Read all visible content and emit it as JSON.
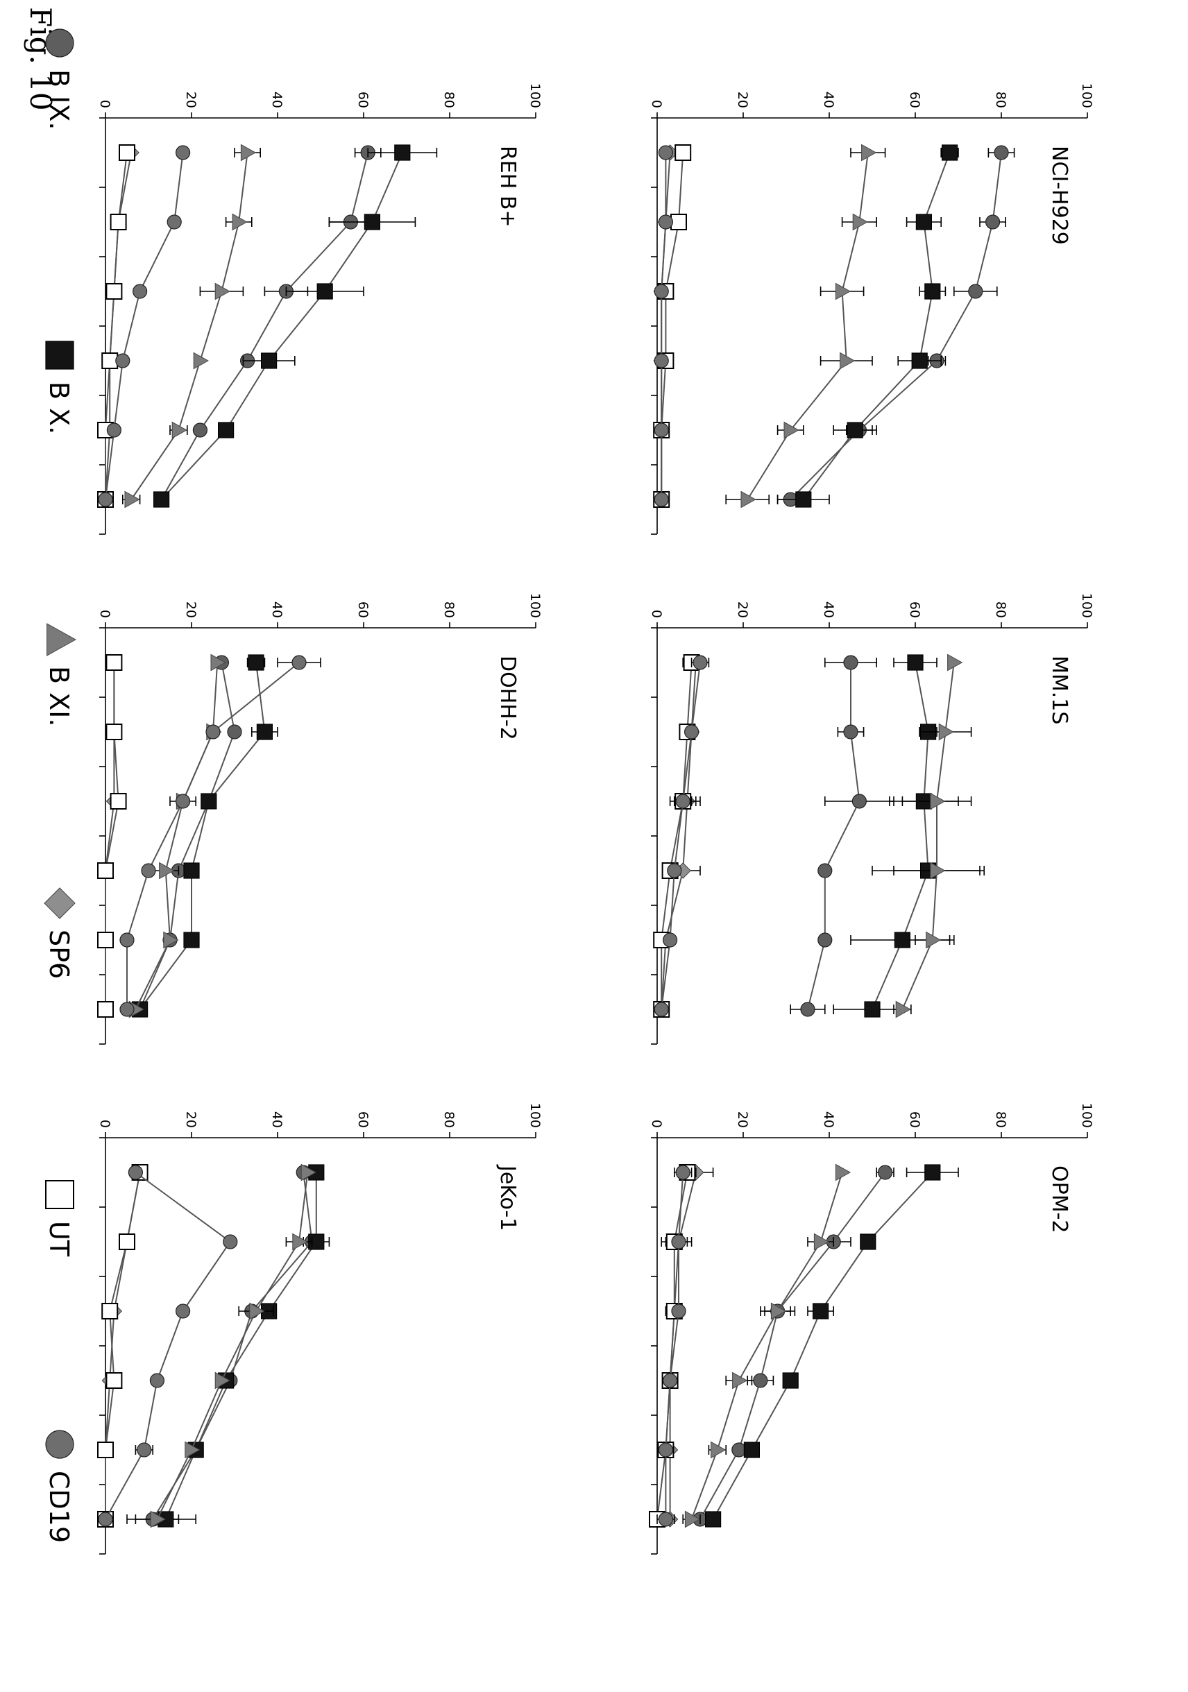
{
  "figure": {
    "title": "Fig. 10"
  },
  "legend": [
    {
      "label": "B IX.",
      "marker": "circle",
      "color": "#5e5e5e"
    },
    {
      "label": "B X.",
      "marker": "square",
      "color": "#141414"
    },
    {
      "label": "B XI.",
      "marker": "triangle",
      "color": "#7a7a7a"
    },
    {
      "label": "SP6",
      "marker": "diamond",
      "color": "#8e8e8e"
    },
    {
      "label": "UT",
      "marker": "open-square",
      "color": "#ffffff"
    },
    {
      "label": "CD19",
      "marker": "circle",
      "color": "#6e6e6e"
    }
  ],
  "chart_data": [
    {
      "type": "line",
      "title": "NCI-H929",
      "ylim": [
        0,
        100
      ],
      "yticks": [
        0,
        20,
        40,
        60,
        80,
        100
      ],
      "x": [
        1,
        2,
        3,
        4,
        5,
        6
      ],
      "series": [
        {
          "name": "B IX.",
          "values": [
            80,
            78,
            74,
            65,
            47,
            31
          ],
          "errors": [
            3,
            3,
            5,
            2,
            3,
            3
          ]
        },
        {
          "name": "B X.",
          "values": [
            68,
            62,
            64,
            61,
            46,
            34
          ],
          "errors": [
            2,
            4,
            3,
            5,
            5,
            6
          ]
        },
        {
          "name": "B XI.",
          "values": [
            49,
            47,
            43,
            44,
            31,
            21
          ],
          "errors": [
            4,
            4,
            5,
            6,
            3,
            5
          ]
        },
        {
          "name": "SP6",
          "values": [
            3,
            2,
            1,
            1,
            1,
            1
          ],
          "errors": [
            0,
            0,
            0,
            0,
            0,
            0
          ]
        },
        {
          "name": "UT",
          "values": [
            6,
            5,
            2,
            2,
            1,
            1
          ],
          "errors": [
            0,
            0,
            0,
            0,
            0,
            0
          ]
        },
        {
          "name": "CD19",
          "values": [
            2,
            2,
            1,
            1,
            1,
            1
          ],
          "errors": [
            0,
            0,
            0,
            0,
            0,
            0
          ]
        }
      ]
    },
    {
      "type": "line",
      "title": "MM.1S",
      "ylim": [
        0,
        100
      ],
      "yticks": [
        0,
        20,
        40,
        60,
        80,
        100
      ],
      "x": [
        1,
        2,
        3,
        4,
        5,
        6
      ],
      "series": [
        {
          "name": "B IX.",
          "values": [
            45,
            45,
            47,
            39,
            39,
            35
          ],
          "errors": [
            6,
            3,
            8,
            0,
            0,
            4
          ]
        },
        {
          "name": "B X.",
          "values": [
            60,
            63,
            62,
            63,
            57,
            50
          ],
          "errors": [
            5,
            2,
            8,
            13,
            12,
            9
          ]
        },
        {
          "name": "B XI.",
          "values": [
            69,
            67,
            65,
            65,
            64,
            57
          ],
          "errors": [
            0,
            6,
            8,
            10,
            4,
            2
          ]
        },
        {
          "name": "SP6",
          "values": [
            9,
            8,
            7,
            6,
            2,
            1
          ],
          "errors": [
            0,
            0,
            3,
            4,
            0,
            0
          ]
        },
        {
          "name": "UT",
          "values": [
            8,
            7,
            6,
            3,
            1,
            1
          ],
          "errors": [
            2,
            0,
            3,
            0,
            0,
            0
          ]
        },
        {
          "name": "CD19",
          "values": [
            10,
            8,
            6,
            4,
            3,
            1
          ],
          "errors": [
            2,
            0,
            2,
            0,
            0,
            0
          ]
        }
      ]
    },
    {
      "type": "line",
      "title": "OPM-2",
      "ylim": [
        0,
        100
      ],
      "yticks": [
        0,
        20,
        40,
        60,
        80,
        100
      ],
      "x": [
        1,
        2,
        3,
        4,
        5,
        6
      ],
      "series": [
        {
          "name": "B IX.",
          "values": [
            53,
            41,
            28,
            24,
            19,
            10
          ],
          "errors": [
            2,
            4,
            4,
            3,
            0,
            0
          ]
        },
        {
          "name": "B X.",
          "values": [
            64,
            49,
            38,
            31,
            22,
            13
          ],
          "errors": [
            6,
            0,
            3,
            0,
            0,
            0
          ]
        },
        {
          "name": "B XI.",
          "values": [
            43,
            38,
            28,
            19,
            14,
            8
          ],
          "errors": [
            0,
            3,
            3,
            3,
            2,
            2
          ]
        },
        {
          "name": "SP6",
          "values": [
            9,
            5,
            4,
            3,
            3,
            3
          ],
          "errors": [
            4,
            3,
            2,
            0,
            0,
            0
          ]
        },
        {
          "name": "UT",
          "values": [
            7,
            4,
            4,
            3,
            2,
            0
          ],
          "errors": [
            2,
            3,
            2,
            0,
            0,
            0
          ]
        },
        {
          "name": "CD19",
          "values": [
            6,
            5,
            5,
            3,
            2,
            2
          ],
          "errors": [
            2,
            0,
            0,
            0,
            0,
            2
          ]
        }
      ]
    },
    {
      "type": "line",
      "title": "REH B+",
      "ylim": [
        0,
        100
      ],
      "yticks": [
        0,
        20,
        40,
        60,
        80,
        100
      ],
      "x": [
        1,
        2,
        3,
        4,
        5,
        6
      ],
      "series": [
        {
          "name": "B IX.",
          "values": [
            61,
            57,
            42,
            33,
            22,
            13
          ],
          "errors": [
            3,
            5,
            5,
            0,
            0,
            0
          ]
        },
        {
          "name": "B X.",
          "values": [
            69,
            62,
            51,
            38,
            28,
            13
          ],
          "errors": [
            8,
            10,
            9,
            6,
            0,
            0
          ]
        },
        {
          "name": "B XI.",
          "values": [
            33,
            31,
            27,
            22,
            17,
            6
          ],
          "errors": [
            3,
            3,
            5,
            0,
            2,
            2
          ]
        },
        {
          "name": "SP6",
          "values": [
            6,
            3,
            2,
            1,
            1,
            0
          ],
          "errors": [
            0,
            0,
            0,
            0,
            0,
            0
          ]
        },
        {
          "name": "UT",
          "values": [
            5,
            3,
            2,
            1,
            0,
            0
          ],
          "errors": [
            0,
            0,
            0,
            0,
            0,
            0
          ]
        },
        {
          "name": "CD19",
          "values": [
            18,
            16,
            8,
            4,
            2,
            0
          ],
          "errors": [
            0,
            0,
            0,
            0,
            0,
            0
          ]
        }
      ]
    },
    {
      "type": "line",
      "title": "DOHH-2",
      "ylim": [
        0,
        100
      ],
      "yticks": [
        0,
        20,
        40,
        60,
        80,
        100
      ],
      "x": [
        1,
        2,
        3,
        4,
        5,
        6
      ],
      "series": [
        {
          "name": "B IX.",
          "values": [
            27,
            30,
            24,
            17,
            15,
            8
          ],
          "errors": [
            0,
            0,
            0,
            0,
            0,
            0
          ]
        },
        {
          "name": "B X.",
          "values": [
            35,
            37,
            24,
            20,
            20,
            8
          ],
          "errors": [
            2,
            3,
            0,
            0,
            0,
            0
          ]
        },
        {
          "name": "B XI.",
          "values": [
            26,
            25,
            18,
            14,
            15,
            7
          ],
          "errors": [
            0,
            0,
            3,
            3,
            0,
            0
          ]
        },
        {
          "name": "SP6",
          "values": [
            2,
            2,
            2,
            0,
            0,
            0
          ],
          "errors": [
            0,
            0,
            0,
            0,
            0,
            0
          ]
        },
        {
          "name": "UT",
          "values": [
            2,
            2,
            3,
            0,
            0,
            0
          ],
          "errors": [
            0,
            0,
            0,
            0,
            0,
            0
          ]
        },
        {
          "name": "CD19",
          "values": [
            45,
            25,
            18,
            10,
            5,
            5
          ],
          "errors": [
            5,
            0,
            0,
            0,
            0,
            0
          ]
        }
      ]
    },
    {
      "type": "line",
      "title": "JeKo-1",
      "ylim": [
        0,
        100
      ],
      "yticks": [
        0,
        20,
        40,
        60,
        80,
        100
      ],
      "x": [
        1,
        2,
        3,
        4,
        5,
        6
      ],
      "series": [
        {
          "name": "B IX.",
          "values": [
            46,
            48,
            34,
            29,
            21,
            11
          ],
          "errors": [
            0,
            0,
            0,
            0,
            0,
            6
          ]
        },
        {
          "name": "B X.",
          "values": [
            49,
            49,
            38,
            28,
            21,
            14
          ],
          "errors": [
            0,
            3,
            0,
            0,
            0,
            7
          ]
        },
        {
          "name": "B XI.",
          "values": [
            47,
            45,
            35,
            27,
            20,
            12
          ],
          "errors": [
            0,
            3,
            4,
            0,
            0,
            0
          ]
        },
        {
          "name": "SP6",
          "values": [
            8,
            5,
            2,
            1,
            0,
            0
          ],
          "errors": [
            0,
            0,
            0,
            0,
            0,
            0
          ]
        },
        {
          "name": "UT",
          "values": [
            8,
            5,
            1,
            2,
            0,
            0
          ],
          "errors": [
            0,
            0,
            0,
            0,
            0,
            0
          ]
        },
        {
          "name": "CD19",
          "values": [
            7,
            29,
            18,
            12,
            9,
            0
          ],
          "errors": [
            0,
            0,
            0,
            0,
            2,
            0
          ]
        }
      ]
    }
  ]
}
